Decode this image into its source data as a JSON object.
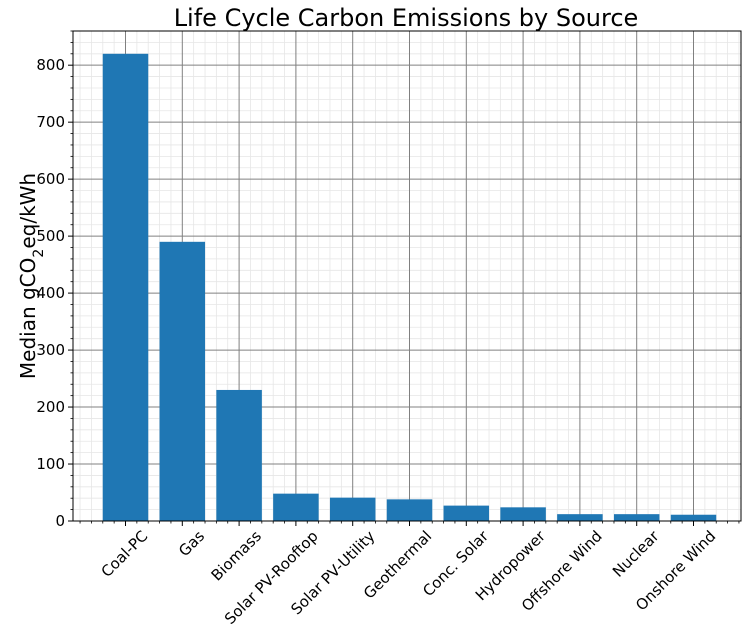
{
  "chart_data": {
    "type": "bar",
    "title": "Life Cycle Carbon Emissions by Source",
    "xlabel": "",
    "ylabel": {
      "prefix": "Median gCO",
      "subscript": "2",
      "suffix": "eq/kWh"
    },
    "categories": [
      "Coal-PC",
      "Gas",
      "Biomass",
      "Solar PV-Rooftop",
      "Solar PV-Utility",
      "Geothermal",
      "Conc. Solar",
      "Hydropower",
      "Offshore Wind",
      "Nuclear",
      "Onshore Wind"
    ],
    "values": [
      820,
      490,
      230,
      48,
      41,
      38,
      27,
      24,
      12,
      12,
      11
    ],
    "ylim": [
      0,
      860
    ],
    "yticks": [
      "0",
      "100",
      "200",
      "300",
      "400",
      "500",
      "600",
      "700",
      "800"
    ],
    "grid": "major and minor",
    "bar_color": "#1f77b4",
    "major_grid_color": "#808080",
    "minor_grid_color": "#e6e6e6"
  }
}
